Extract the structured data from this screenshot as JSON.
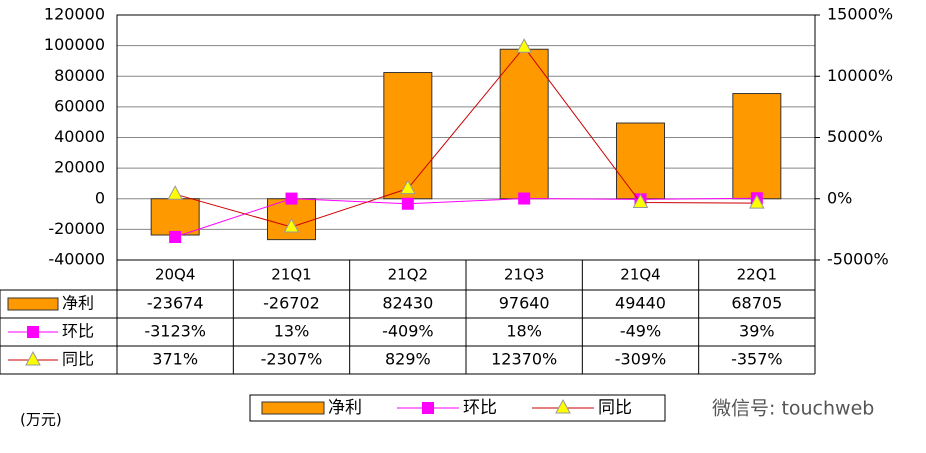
{
  "chart_data": {
    "type": "bar",
    "categories": [
      "20Q4",
      "21Q1",
      "21Q2",
      "21Q3",
      "21Q4",
      "22Q1"
    ],
    "series": [
      {
        "name": "净利",
        "color": "#FF9900",
        "values": [
          -23674,
          -26702,
          82430,
          97640,
          49440,
          68705
        ]
      },
      {
        "name": "环比",
        "color": "#FF00FF",
        "axis": "y2",
        "marker": "square",
        "values": [
          -3123,
          13,
          -409,
          18,
          -49,
          39
        ],
        "value_labels": [
          "-3123%",
          "13%",
          "-409%",
          "18%",
          "-49%",
          "39%"
        ]
      },
      {
        "name": "同比",
        "color": "#CC0000",
        "marker_color": "#FFFF00",
        "axis": "y2",
        "marker": "triangle",
        "values": [
          371,
          -2307,
          829,
          12370,
          -309,
          -357
        ],
        "value_labels": [
          "371%",
          "-2307%",
          "829%",
          "12370%",
          "-309%",
          "-357%"
        ]
      }
    ],
    "ylim": [
      -40000,
      120000
    ],
    "yticks": [
      -40000,
      -20000,
      0,
      20000,
      40000,
      60000,
      80000,
      100000,
      120000
    ],
    "y2lim": [
      -5000,
      15000
    ],
    "y2ticks": [
      {
        "value": -5000,
        "label": "-5000%"
      },
      {
        "value": 0,
        "label": "0%"
      },
      {
        "value": 5000,
        "label": "5000%"
      },
      {
        "value": 10000,
        "label": "10000%"
      },
      {
        "value": 15000,
        "label": "15000%"
      }
    ],
    "grid": true,
    "unit_note": "(万元)",
    "watermark": "微信号: touchweb"
  }
}
